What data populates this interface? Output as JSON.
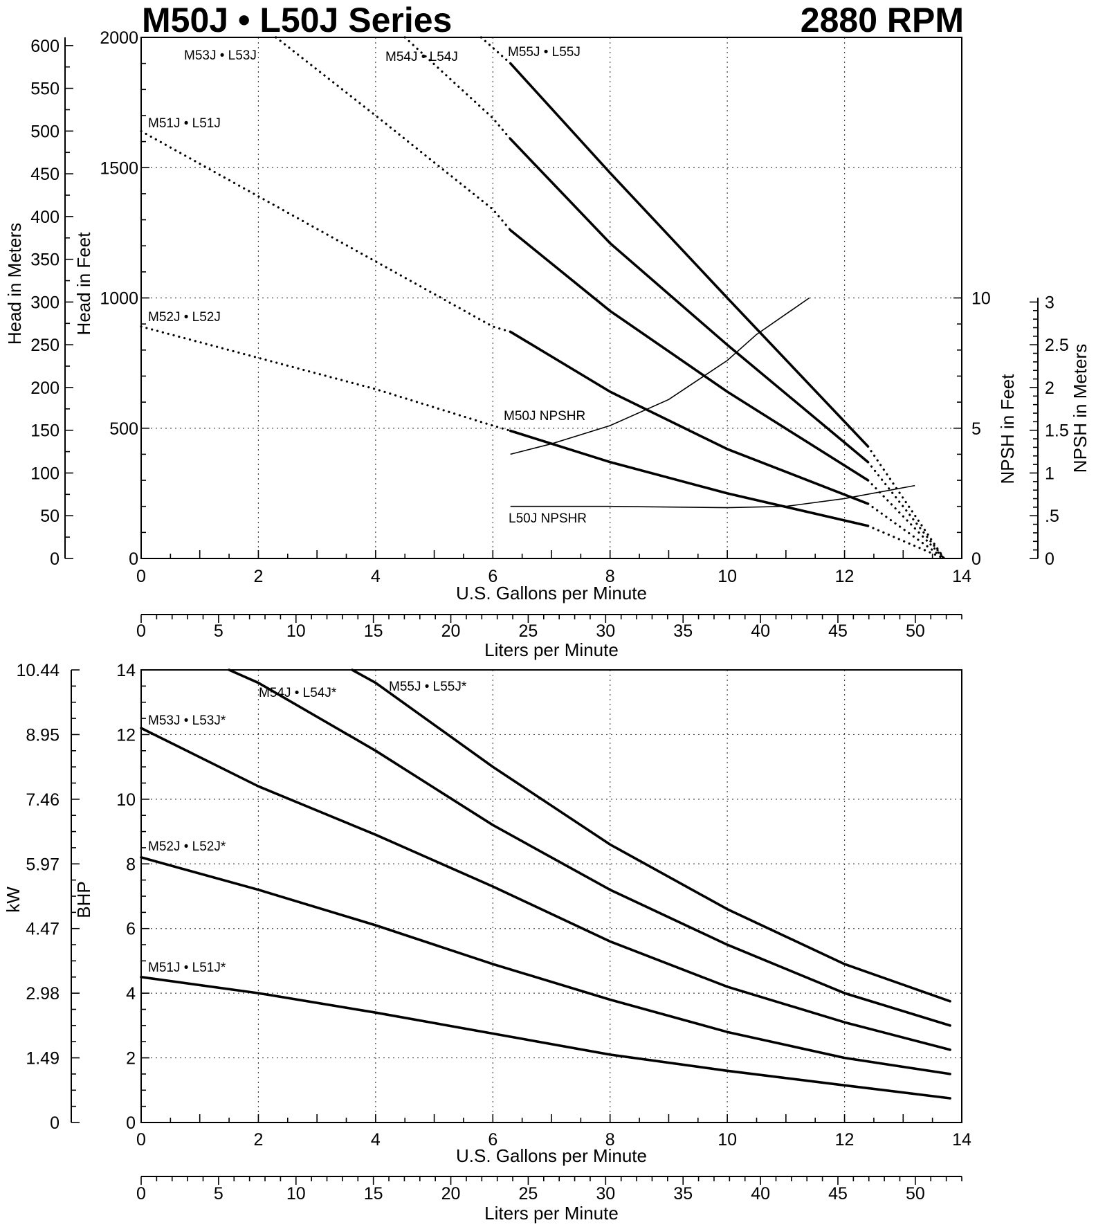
{
  "header": {
    "title": "M50J • L50J Series",
    "speed": "2880 RPM"
  },
  "chart_data": [
    {
      "type": "line",
      "name": "head",
      "xlabel": "U.S. Gallons per Minute",
      "x2label": "Liters per Minute",
      "ylabel_left_outer": "Head in Meters",
      "ylabel_left_inner": "Head in Feet",
      "ylabel_right_inner": "NPSH in Feet",
      "ylabel_right_outer": "NPSH in Meters",
      "xlim": [
        0,
        14
      ],
      "ylim": [
        0,
        2000
      ],
      "x2lim": [
        0,
        53
      ],
      "y_meters_lim": [
        0,
        609.6
      ],
      "npsh_feet_lim": [
        0,
        20
      ],
      "npsh_meters_lim": [
        0,
        6.096
      ],
      "x_ticks": [
        0,
        2,
        4,
        6,
        8,
        10,
        12,
        14
      ],
      "y_ticks": [
        0,
        500,
        1000,
        1500,
        2000
      ],
      "x2_ticks": [
        0,
        5,
        10,
        15,
        20,
        25,
        30,
        35,
        40,
        45,
        50
      ],
      "y_meters_ticks": [
        0,
        50,
        100,
        150,
        200,
        250,
        300,
        350,
        400,
        450,
        500,
        550,
        600
      ],
      "npsh_feet_ticks": [
        0,
        5,
        10
      ],
      "npsh_meters_ticks": [
        "0",
        ".5",
        "1",
        "1.5",
        "2",
        "2.5",
        "3"
      ],
      "grid": true,
      "series": [
        {
          "name": "M51J • L51J",
          "dotted": [
            [
              0,
              890
            ],
            [
              2,
              770
            ],
            [
              4,
              650
            ],
            [
              6,
              510
            ],
            [
              6.3,
              490
            ]
          ],
          "solid": [
            [
              6.3,
              490
            ],
            [
              8,
              370
            ],
            [
              10,
              250
            ],
            [
              12.4,
              125
            ]
          ],
          "dotted_tail": [
            [
              12.4,
              125
            ],
            [
              13.7,
              0
            ]
          ]
        },
        {
          "name": "M52J • L52J",
          "dotted": [
            [
              0,
              1640
            ],
            [
              2,
              1390
            ],
            [
              4,
              1140
            ],
            [
              6,
              890
            ],
            [
              6.3,
              870
            ]
          ],
          "solid": [
            [
              6.3,
              870
            ],
            [
              8,
              640
            ],
            [
              10,
              420
            ],
            [
              12.4,
              210
            ]
          ],
          "dotted_tail": [
            [
              12.4,
              210
            ],
            [
              13.7,
              0
            ]
          ]
        },
        {
          "name": "M53J • L53J",
          "dotted": [
            [
              2.3,
              2000
            ],
            [
              4,
              1700
            ],
            [
              6,
              1340
            ],
            [
              6.3,
              1260
            ]
          ],
          "solid": [
            [
              6.3,
              1260
            ],
            [
              8,
              950
            ],
            [
              10,
              640
            ],
            [
              12.4,
              300
            ]
          ],
          "dotted_tail": [
            [
              12.4,
              300
            ],
            [
              13.7,
              0
            ]
          ]
        },
        {
          "name": "M54J • L54J",
          "dotted": [
            [
              4.5,
              2000
            ],
            [
              6,
              1690
            ],
            [
              6.3,
              1610
            ]
          ],
          "solid": [
            [
              6.3,
              1610
            ],
            [
              8,
              1210
            ],
            [
              10,
              820
            ],
            [
              12.4,
              370
            ]
          ],
          "dotted_tail": [
            [
              12.4,
              370
            ],
            [
              13.7,
              0
            ]
          ]
        },
        {
          "name": "M55J • L55J",
          "dotted": [
            [
              5.8,
              2000
            ],
            [
              6.3,
              1900
            ]
          ],
          "solid": [
            [
              6.3,
              1900
            ],
            [
              8,
              1480
            ],
            [
              10,
              1000
            ],
            [
              12.4,
              430
            ]
          ],
          "dotted_tail": [
            [
              12.4,
              430
            ],
            [
              13.7,
              0
            ]
          ]
        }
      ],
      "npsh_series": [
        {
          "name": "M50J NPSHR",
          "points": [
            [
              6.3,
              4.0
            ],
            [
              7,
              4.4
            ],
            [
              8,
              5.1
            ],
            [
              9,
              6.1
            ],
            [
              10,
              7.6
            ],
            [
              10.5,
              8.6
            ],
            [
              11.4,
              10.0
            ]
          ]
        },
        {
          "name": "L50J NPSHR",
          "points": [
            [
              6.3,
              2.0
            ],
            [
              8,
              2.0
            ],
            [
              10,
              1.95
            ],
            [
              11,
              2.0
            ],
            [
              12,
              2.3
            ],
            [
              13.2,
              2.8
            ]
          ]
        }
      ]
    },
    {
      "type": "line",
      "name": "power",
      "xlabel": "U.S. Gallons per Minute",
      "x2label": "Liters per Minute",
      "ylabel_left_outer": "kW",
      "ylabel_left_inner": "BHP",
      "xlim": [
        0,
        14
      ],
      "ylim": [
        0,
        14
      ],
      "x2lim": [
        0,
        53
      ],
      "x_ticks": [
        0,
        2,
        4,
        6,
        8,
        10,
        12,
        14
      ],
      "y_ticks": [
        0,
        2,
        4,
        6,
        8,
        10,
        12,
        14
      ],
      "x2_ticks": [
        0,
        5,
        10,
        15,
        20,
        25,
        30,
        35,
        40,
        45,
        50
      ],
      "kw_ticks": [
        "0",
        "1.49",
        "2.98",
        "4.47",
        "5.97",
        "7.46",
        "8.95",
        "10.44"
      ],
      "grid": true,
      "series": [
        {
          "name": "M51J • L51J*",
          "values": [
            [
              0,
              4.5
            ],
            [
              2,
              4.0
            ],
            [
              4,
              3.4
            ],
            [
              6,
              2.75
            ],
            [
              8,
              2.1
            ],
            [
              10,
              1.6
            ],
            [
              12,
              1.15
            ],
            [
              13.8,
              0.75
            ]
          ]
        },
        {
          "name": "M52J • L52J*",
          "values": [
            [
              0,
              8.2
            ],
            [
              2,
              7.2
            ],
            [
              4,
              6.1
            ],
            [
              6,
              4.9
            ],
            [
              8,
              3.8
            ],
            [
              10,
              2.8
            ],
            [
              12,
              2.0
            ],
            [
              13.8,
              1.5
            ]
          ]
        },
        {
          "name": "M53J • L53J*",
          "values": [
            [
              0,
              12.2
            ],
            [
              2,
              10.4
            ],
            [
              4,
              8.9
            ],
            [
              6,
              7.3
            ],
            [
              8,
              5.6
            ],
            [
              10,
              4.2
            ],
            [
              12,
              3.1
            ],
            [
              13.8,
              2.25
            ]
          ]
        },
        {
          "name": "M54J • L54J*",
          "values": [
            [
              1.5,
              14.0
            ],
            [
              2,
              13.6
            ],
            [
              4,
              11.5
            ],
            [
              6,
              9.2
            ],
            [
              8,
              7.2
            ],
            [
              10,
              5.5
            ],
            [
              12,
              4.0
            ],
            [
              13.8,
              3.0
            ]
          ]
        },
        {
          "name": "M55J • L55J*",
          "values": [
            [
              3.6,
              14.0
            ],
            [
              4,
              13.6
            ],
            [
              6,
              11.0
            ],
            [
              8,
              8.6
            ],
            [
              10,
              6.6
            ],
            [
              12,
              4.9
            ],
            [
              13.8,
              3.75
            ]
          ]
        }
      ]
    }
  ]
}
